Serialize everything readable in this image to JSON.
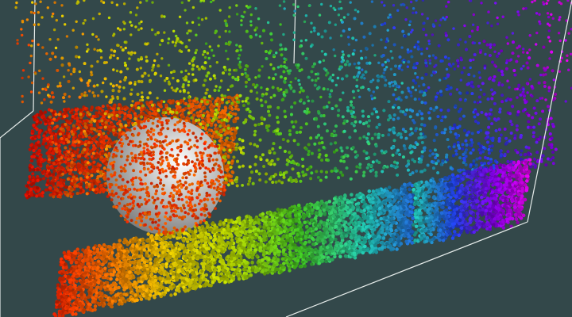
{
  "scene": {
    "background_color": "#33484a",
    "bounding_box_color": "#e6ecea",
    "sphere_color": "#d4d4d4",
    "particle_colormap": [
      "#e00000",
      "#f06000",
      "#e0c000",
      "#b0d000",
      "#40c020",
      "#20c0b0",
      "#2040e0",
      "#8000e0",
      "#e000e0"
    ]
  }
}
